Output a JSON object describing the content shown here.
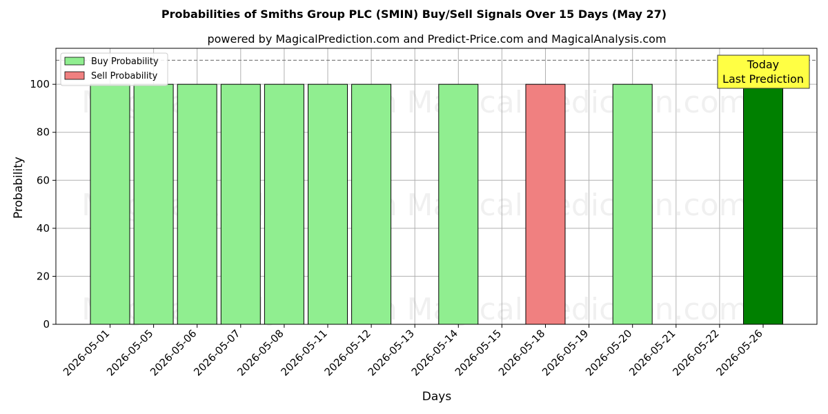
{
  "chart_data": {
    "type": "bar",
    "title": "Probabilities of Smiths Group PLC (SMIN) Buy/Sell Signals Over 15 Days (May 27)",
    "subtitle": "powered by MagicalPrediction.com and Predict-Price.com and MagicalAnalysis.com",
    "xlabel": "Days",
    "ylabel": "Probability",
    "ylim": [
      0,
      115
    ],
    "yticks": [
      0,
      20,
      40,
      60,
      80,
      100
    ],
    "categories": [
      "2026-05-01",
      "2026-05-05",
      "2026-05-06",
      "2026-05-07",
      "2026-05-08",
      "2026-05-11",
      "2026-05-12",
      "2026-05-13",
      "2026-05-14",
      "2026-05-15",
      "2026-05-18",
      "2026-05-19",
      "2026-05-20",
      "2026-05-21",
      "2026-05-22",
      "2026-05-26"
    ],
    "series": [
      {
        "name": "Buy Probability",
        "color": "#90ee90",
        "values": [
          100,
          100,
          100,
          100,
          100,
          100,
          100,
          0,
          100,
          0,
          0,
          0,
          100,
          0,
          0,
          100
        ]
      },
      {
        "name": "Sell Probability",
        "color": "#f08080",
        "values": [
          0,
          0,
          0,
          0,
          0,
          0,
          0,
          0,
          0,
          0,
          100,
          0,
          0,
          0,
          0,
          0
        ]
      }
    ],
    "highlight": {
      "category": "2026-05-26",
      "color": "#008000"
    },
    "reference_line": {
      "value": 110,
      "style": "dashed",
      "color": "#808080"
    },
    "annotation": {
      "lines": [
        "Today",
        "Last Prediction"
      ],
      "background": "#ffff44"
    },
    "watermarks": [
      "MagicalAnalysis.com",
      "MagicalPrediction.com"
    ],
    "grid": true,
    "legend_position": "top-left"
  }
}
